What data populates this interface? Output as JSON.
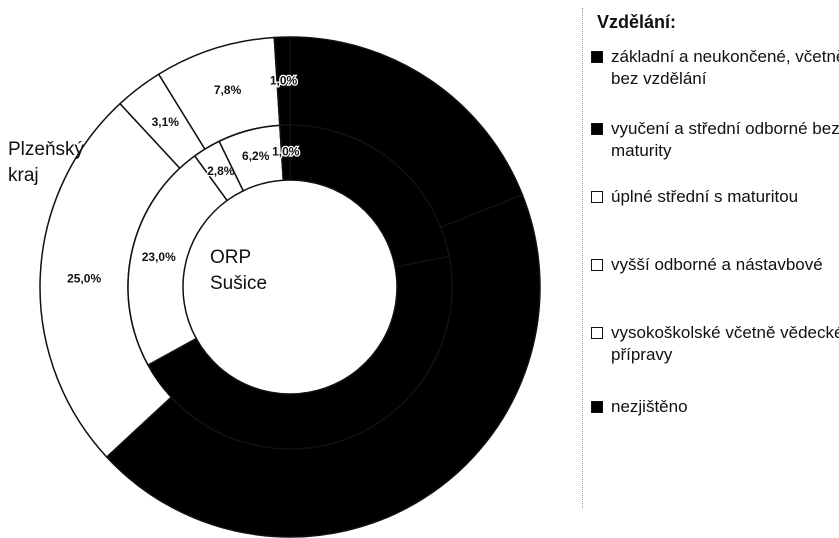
{
  "chart_data": {
    "type": "doughnut",
    "title": "Vzdělání:",
    "categories": [
      "základní a neukončené, včetně bez vzdělání",
      "vyučení a střední odborné bez maturity",
      "úplné střední s maturitou",
      "vyšší odborné a nástavbové",
      "vysokoškolské včetně vědecké přípravy",
      "nezjištěno"
    ],
    "colors": [
      "#000000",
      "#000000",
      "#ffffff",
      "#ffffff",
      "#ffffff",
      "#000000"
    ],
    "series": [
      {
        "name": "Plzeňský kraj",
        "values": [
          19.0,
          44.1,
          25.0,
          3.1,
          7.8,
          1.0
        ],
        "value_labels": [
          null,
          null,
          "25,0%",
          "3,1%",
          "7,8%",
          "1,0%"
        ]
      },
      {
        "name": "ORP Sušice",
        "values": [
          22.0,
          45.0,
          23.0,
          2.8,
          6.2,
          1.0
        ],
        "value_labels": [
          null,
          null,
          "23,0%",
          "2,8%",
          "6,2%",
          "1,0%"
        ]
      }
    ]
  }
}
